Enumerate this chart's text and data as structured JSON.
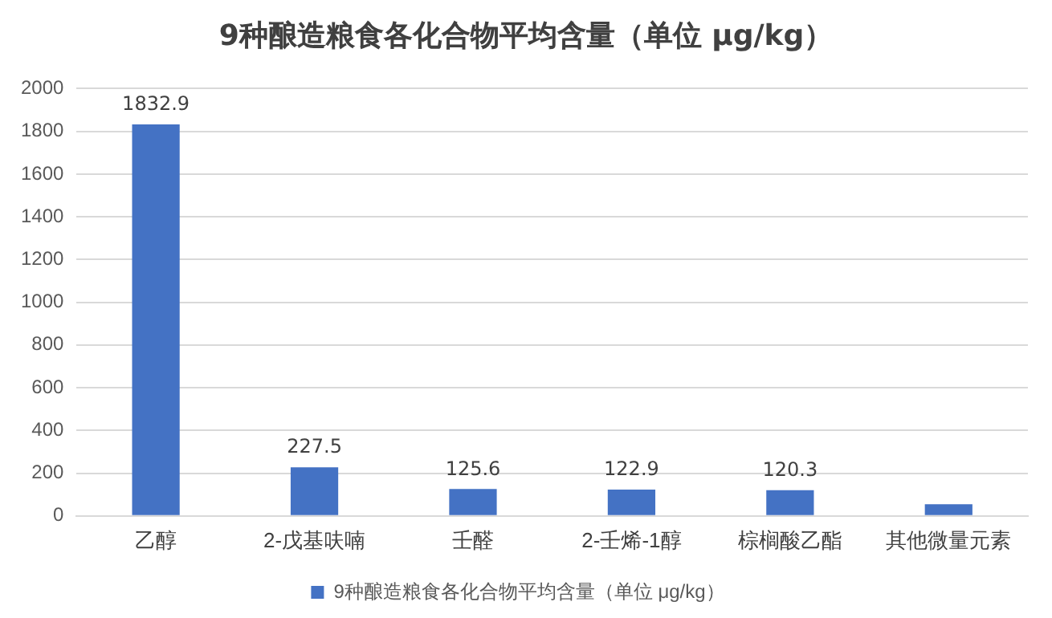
{
  "chart_data": {
    "type": "bar",
    "title": "9种酿造粮食各化合物平均含量（单位 μg/kg）",
    "categories": [
      "乙醇",
      "2-戊基呋喃",
      "壬醛",
      "2-壬烯-1醇",
      "棕榈酸乙酯",
      "其他微量元素"
    ],
    "series": [
      {
        "name": "9种酿造粮食各化合物平均含量（单位 μg/kg）",
        "color": "#4472c4",
        "values": [
          1832.9,
          227.5,
          125.6,
          122.9,
          120.3,
          55
        ],
        "value_labels": [
          "1832.9",
          "227.5",
          "125.6",
          "122.9",
          "120.3",
          null
        ]
      }
    ],
    "ylim": [
      0,
      2000
    ],
    "yticks": [
      0,
      200,
      400,
      600,
      800,
      1000,
      1200,
      1400,
      1600,
      1800,
      2000
    ],
    "grid": "y",
    "legend": "bottom"
  }
}
